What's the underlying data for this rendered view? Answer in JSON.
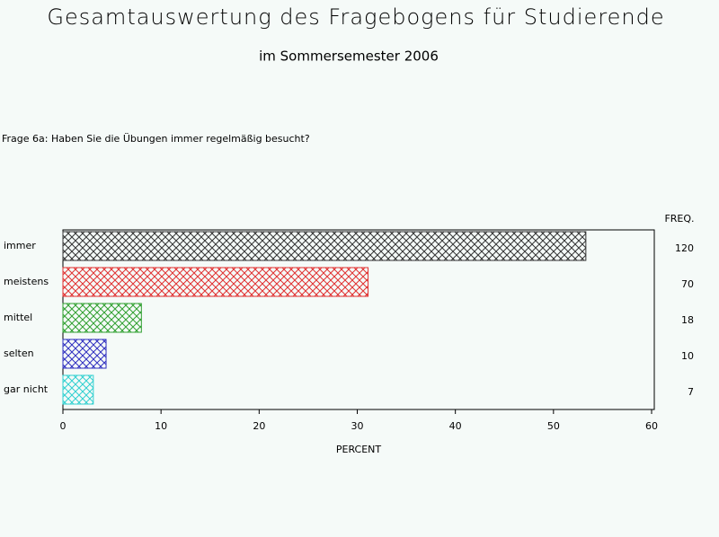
{
  "chart_data": {
    "type": "hbar",
    "title": "Gesamtauswertung des Fragebogens für Studierende",
    "subtitle": "im Sommersemester 2006",
    "question": "Frage 6a: Haben Sie die Übungen immer regelmäßig besucht?",
    "categories": [
      "immer",
      "meistens",
      "mittel",
      "selten",
      "gar nicht"
    ],
    "values": [
      53.3,
      31.1,
      8.0,
      4.4,
      3.1
    ],
    "colors": [
      "#333333",
      "#e03030",
      "#30a030",
      "#3030c0",
      "#30d0d0"
    ],
    "freq_header": "FREQ.",
    "freq": [
      120,
      70,
      18,
      10,
      7
    ],
    "xlabel": "PERCENT",
    "xlim": [
      0,
      60
    ],
    "xticks": [
      0,
      10,
      20,
      30,
      40,
      50,
      60
    ]
  }
}
